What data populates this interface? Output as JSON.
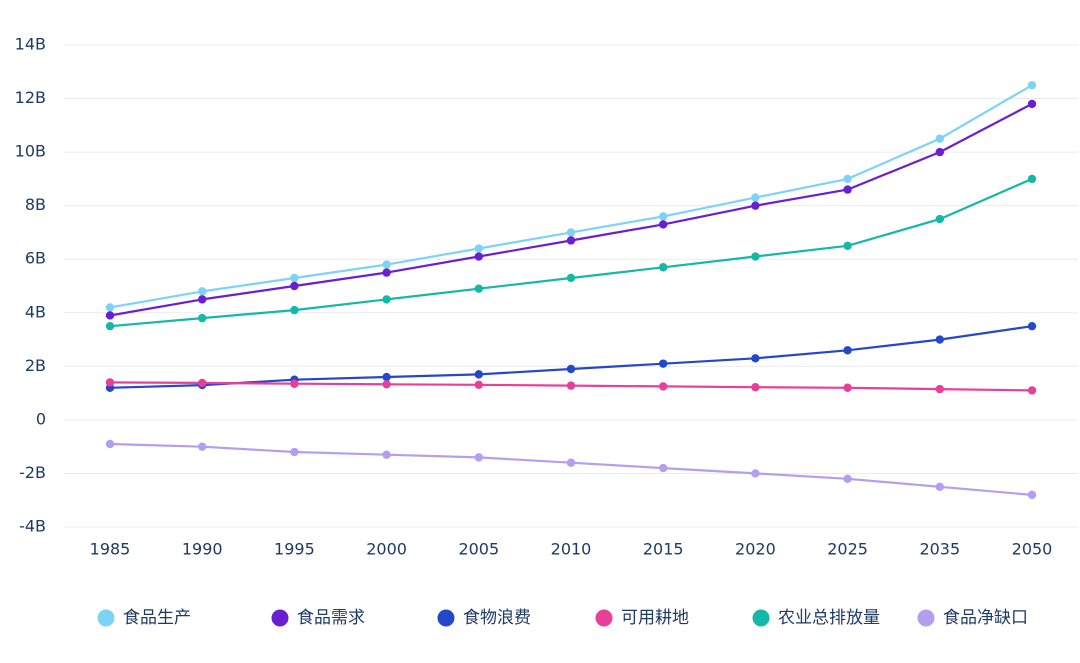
{
  "chart_data": {
    "type": "line",
    "title": "",
    "xlabel": "",
    "ylabel": "",
    "categories": [
      "1985",
      "1990",
      "1995",
      "2000",
      "2005",
      "2010",
      "2015",
      "2020",
      "2025",
      "2035",
      "2050"
    ],
    "y_ticks": [
      -4,
      -2,
      0,
      2,
      4,
      6,
      8,
      10,
      12,
      14
    ],
    "y_tick_labels": [
      "-4B",
      "-2B",
      "0",
      "2B",
      "4B",
      "6B",
      "8B",
      "10B",
      "12B",
      "14B"
    ],
    "ylim": [
      -4,
      14
    ],
    "grid": true,
    "legend_position": "bottom",
    "series": [
      {
        "name": "食品生产",
        "color": "#7dd3f5",
        "values": [
          4.2,
          4.8,
          5.3,
          5.8,
          6.4,
          7.0,
          7.6,
          8.3,
          9.0,
          10.5,
          12.5
        ]
      },
      {
        "name": "食品需求",
        "color": "#6a1fd1",
        "values": [
          3.9,
          4.5,
          5.0,
          5.5,
          6.1,
          6.7,
          7.3,
          8.0,
          8.6,
          10.0,
          11.8
        ]
      },
      {
        "name": "食物浪费",
        "color": "#2547c9",
        "values": [
          1.2,
          1.3,
          1.5,
          1.6,
          1.7,
          1.9,
          2.1,
          2.3,
          2.6,
          3.0,
          3.5
        ]
      },
      {
        "name": "可用耕地",
        "color": "#e8409a",
        "values": [
          1.4,
          1.38,
          1.35,
          1.33,
          1.31,
          1.28,
          1.25,
          1.22,
          1.2,
          1.15,
          1.1
        ]
      },
      {
        "name": "农业总排放量",
        "color": "#14b8a6",
        "values": [
          3.5,
          3.8,
          4.1,
          4.5,
          4.9,
          5.3,
          5.7,
          6.1,
          6.5,
          7.5,
          9.0
        ]
      },
      {
        "name": "食品净缺口",
        "color": "#b39ef0",
        "values": [
          -0.9,
          -1.0,
          -1.2,
          -1.3,
          -1.4,
          -1.6,
          -1.8,
          -2.0,
          -2.2,
          -2.5,
          -2.8
        ]
      }
    ]
  }
}
